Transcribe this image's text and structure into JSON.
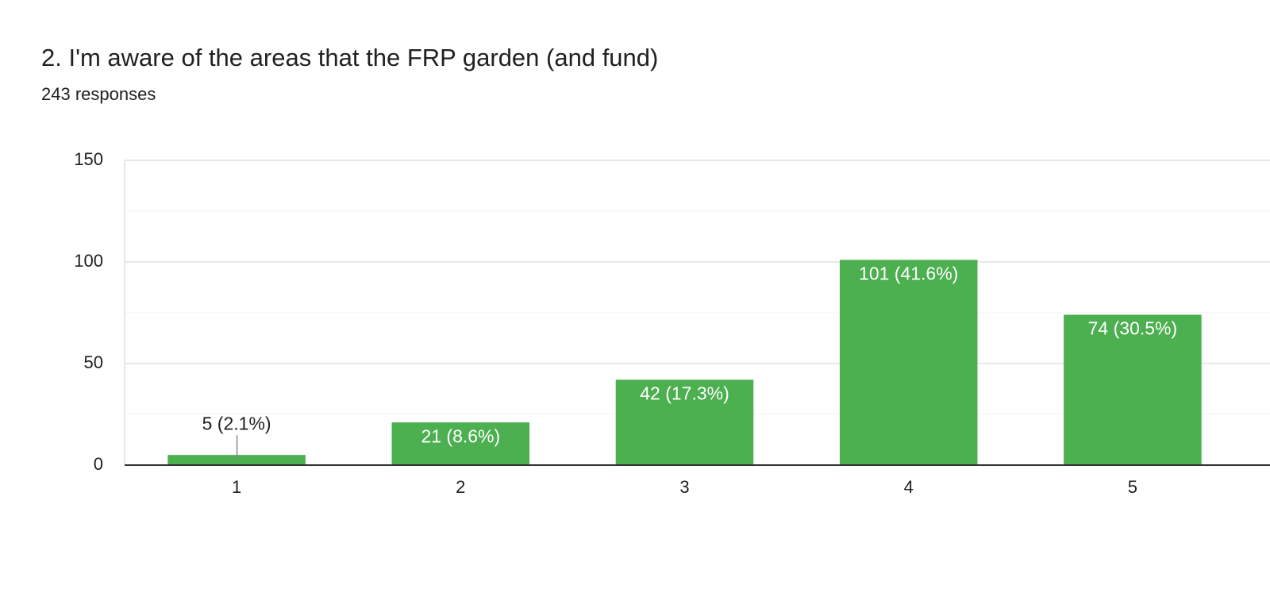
{
  "chart_data": {
    "type": "bar",
    "title": "2. I'm aware of the areas that the FRP garden (and fund)",
    "subtitle": "243 responses",
    "categories": [
      "1",
      "2",
      "3",
      "4",
      "5"
    ],
    "values": [
      5,
      21,
      42,
      101,
      74
    ],
    "value_labels": [
      "5 (2.1%)",
      "21 (8.6%)",
      "42 (17.3%)",
      "101 (41.6%)",
      "74 (30.5%)"
    ],
    "color": "#4caf50",
    "ylim": [
      0,
      150
    ],
    "yticks": [
      0,
      50,
      100,
      150
    ],
    "minor_yticks": [
      25,
      75,
      125
    ],
    "grid": true
  }
}
